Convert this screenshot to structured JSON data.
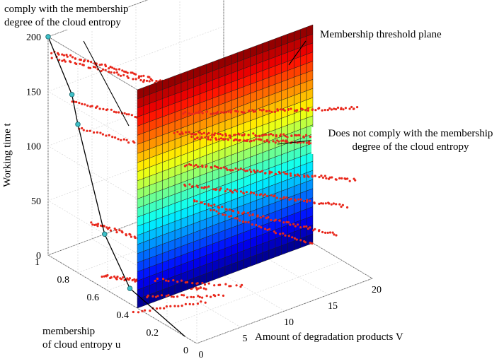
{
  "chart_data": {
    "type": "scatter",
    "projection": "3d",
    "axes": {
      "x": {
        "label": "Amount of degradation products V",
        "ticks": [
          "0",
          "5",
          "10",
          "15",
          "20"
        ],
        "range": [
          0,
          20
        ]
      },
      "y": {
        "label": "membership\nof cloud entropy u",
        "ticks": [
          "0",
          "0.2",
          "0.4",
          "0.6",
          "0.8",
          "1"
        ],
        "range": [
          0,
          1
        ]
      },
      "z": {
        "label": "Working time t",
        "ticks": [
          "0",
          "50",
          "100",
          "150",
          "200"
        ],
        "range": [
          0,
          200
        ]
      }
    },
    "threshold_plane": {
      "label": "Membership threshold plane",
      "colormap": "jet",
      "u": 0.4
    },
    "annotations": [
      {
        "id": "comply",
        "text": "comply with the membership\ndegree of the cloud entropy"
      },
      {
        "id": "not_comply",
        "text": "Does not comply with the membership\ndegree of the cloud entropy"
      }
    ],
    "grid": true,
    "colors": {
      "points": "#e8281c",
      "curve_markers": "#3fc0c8",
      "curve_line": "#000000"
    }
  }
}
